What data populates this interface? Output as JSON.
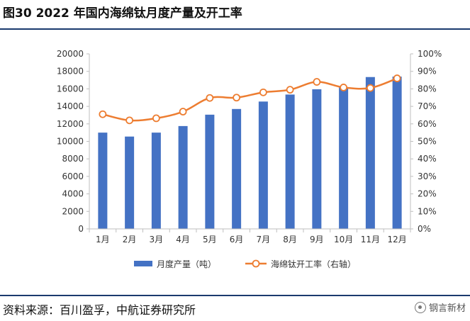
{
  "header": {
    "title": "图30  2022 年国内海绵钛月度产量及开工率"
  },
  "footer": {
    "source": "资料来源：百川盈孚，中航证券研究所",
    "watermark": "钢言新材"
  },
  "colors": {
    "bar": "#4472C4",
    "line": "#ED7D31",
    "marker_fill": "#ffffff",
    "axis": "#bfbfbf"
  },
  "chart_data": {
    "type": "bar",
    "categories": [
      "1月",
      "2月",
      "3月",
      "4月",
      "5月",
      "6月",
      "7月",
      "8月",
      "9月",
      "10月",
      "11月",
      "12月"
    ],
    "series": [
      {
        "name": "月度产量（吨）",
        "type": "bar",
        "axis": "left",
        "values": [
          11000,
          10550,
          11000,
          11750,
          13050,
          13700,
          14550,
          15350,
          15950,
          16200,
          17350,
          17400
        ]
      },
      {
        "name": "海绵钛开工率（右轴）",
        "type": "line",
        "axis": "right",
        "values": [
          0.655,
          0.62,
          0.632,
          0.67,
          0.748,
          0.75,
          0.78,
          0.795,
          0.84,
          0.808,
          0.805,
          0.86
        ]
      }
    ],
    "y_left": {
      "min": 0,
      "max": 20000,
      "step": 2000,
      "ticks": [
        "0",
        "2000",
        "4000",
        "6000",
        "8000",
        "10000",
        "12000",
        "14000",
        "16000",
        "18000",
        "20000"
      ]
    },
    "y_right": {
      "min": 0,
      "max": 1,
      "step": 0.1,
      "ticks": [
        "0%",
        "10%",
        "20%",
        "30%",
        "40%",
        "50%",
        "60%",
        "70%",
        "80%",
        "90%",
        "100%"
      ]
    },
    "grid": false,
    "legend_position": "bottom"
  }
}
